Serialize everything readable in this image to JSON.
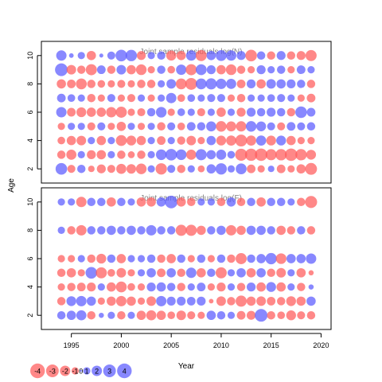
{
  "chart_data": [
    {
      "type": "scatter",
      "title": "Joint sample residuals log(N)",
      "xlabel": "Year",
      "ylabel": "Age",
      "xlim": [
        1992,
        2021
      ],
      "ylim": [
        1,
        11
      ],
      "yticks": [
        "2",
        "4",
        "6",
        "8",
        "10"
      ],
      "ages": [
        2,
        3,
        4,
        5,
        6,
        7,
        8,
        9,
        10
      ],
      "years": [
        1994,
        1995,
        1996,
        1997,
        1998,
        1999,
        2000,
        2001,
        2002,
        2003,
        2004,
        2005,
        2006,
        2007,
        2008,
        2009,
        2010,
        2011,
        2012,
        2013,
        2014,
        2015,
        2016,
        2017,
        2018,
        2019
      ],
      "residuals_by_age": {
        "2": [
          2.5,
          -1.2,
          1.3,
          -0.8,
          -1.5,
          -1.2,
          -1.9,
          -1.7,
          -2.1,
          1.0,
          -2.4,
          1.2,
          -1.3,
          1.0,
          -0.9,
          1.6,
          2.4,
          1.0,
          2.2,
          -1.4,
          -1.0,
          0.8,
          -1.4,
          -1.0,
          -1.6,
          -2.6
        ],
        "3": [
          -1.3,
          -1.9,
          1.0,
          -1.5,
          -1.6,
          1.0,
          -1.3,
          -0.9,
          -1.3,
          1.0,
          2.1,
          2.5,
          2.1,
          -1.9,
          2.3,
          1.6,
          1.9,
          1.1,
          -2.7,
          -2.8,
          -2.9,
          -2.3,
          -2.4,
          -2.9,
          -2.4,
          -1.8
        ],
        "4": [
          -1.1,
          -1.6,
          -1.7,
          1.0,
          -1.6,
          1.0,
          -2.2,
          -1.8,
          -1.6,
          1.0,
          -1.4,
          1.0,
          -1.3,
          -1.7,
          -1.0,
          1.6,
          -1.8,
          -1.9,
          -2.6,
          -1.9,
          1.9,
          -1.8,
          1.8,
          -1.6,
          -1.0,
          -1.0
        ],
        "5": [
          -1.0,
          1.0,
          1.0,
          -1.2,
          1.2,
          -1.0,
          -1.6,
          1.0,
          -1.0,
          1.0,
          -1.3,
          1.2,
          -1.1,
          1.4,
          1.3,
          1.9,
          -2.1,
          -1.9,
          -2.0,
          2.1,
          1.8,
          1.2,
          -1.2,
          1.4,
          1.2,
          1.3
        ],
        "6": [
          2.0,
          -1.4,
          -1.8,
          -1.6,
          -1.6,
          -2.0,
          -2.3,
          -1.0,
          -1.2,
          1.3,
          2.1,
          -1.0,
          1.1,
          1.0,
          -1.2,
          1.0,
          -1.6,
          1.0,
          -1.5,
          1.5,
          1.3,
          1.5,
          1.3,
          -1.3,
          2.5,
          1.4
        ],
        "7": [
          1.4,
          1.1,
          1.0,
          -1.3,
          -1.0,
          1.2,
          -1.0,
          -1.2,
          1.0,
          -1.0,
          1.0,
          2.0,
          -1.1,
          1.1,
          1.0,
          1.2,
          1.2,
          -1.0,
          -1.3,
          1.0,
          1.0,
          1.1,
          1.2,
          1.0,
          -1.0,
          -1.4
        ],
        "8": [
          -1.6,
          -1.4,
          -2.2,
          -1.3,
          -1.1,
          -1.0,
          -1.2,
          -1.0,
          -1.3,
          -1.3,
          1.0,
          1.7,
          -2.2,
          -2.6,
          2.2,
          2.3,
          2.0,
          1.9,
          -1.4,
          1.5,
          -1.6,
          1.7,
          1.6,
          1.5,
          1.3,
          -1.3
        ],
        "9": [
          3.0,
          -1.7,
          -1.3,
          -2.3,
          1.4,
          -1.3,
          1.7,
          -1.6,
          -2.1,
          -1.0,
          1.3,
          -1.1,
          2.0,
          -2.3,
          2.2,
          1.5,
          -1.6,
          -2.1,
          -1.3,
          -1.0,
          1.5,
          1.0,
          1.3,
          -1.0,
          1.4,
          1.0
        ],
        "10": [
          2.0,
          0.4,
          1.0,
          -1.6,
          0.3,
          1.2,
          2.5,
          2.4,
          -1.5,
          1.0,
          1.3,
          -1.9,
          -1.6,
          2.0,
          -2.3,
          1.6,
          2.2,
          2.0,
          1.5,
          -2.5,
          1.3,
          -1.3,
          1.5,
          -1.3,
          -1.5,
          -2.3
        ]
      }
    },
    {
      "type": "scatter",
      "title": "Joint sample residuals log(F)",
      "xlabel": "Year",
      "ylabel": "Age",
      "xlim": [
        1992,
        2021
      ],
      "ylim": [
        1,
        11
      ],
      "xticks": [
        "1995",
        "2000",
        "2005",
        "2010",
        "2015",
        "2020"
      ],
      "yticks": [
        "2",
        "4",
        "6",
        "8",
        "10"
      ],
      "ages": [
        2,
        3,
        4,
        5,
        6,
        8,
        10
      ],
      "years": [
        1994,
        1995,
        1996,
        1997,
        1998,
        1999,
        2000,
        2001,
        2002,
        2003,
        2004,
        2005,
        2006,
        2007,
        2008,
        2009,
        2010,
        2011,
        2012,
        2013,
        2014,
        2015,
        2016,
        2017,
        2018,
        2019
      ],
      "residuals_by_age": {
        "2": [
          1.3,
          1.6,
          1.9,
          -1.3,
          0.5,
          1.0,
          -1.3,
          1.0,
          -1.6,
          -1.9,
          -1.6,
          -1.1,
          -1.7,
          -1.2,
          -1.0,
          1.6,
          1.3,
          1.0,
          -1.4,
          -1.5,
          3.0,
          -1.3,
          -1.1,
          -1.8,
          -1.2,
          -1.3
        ],
        "3": [
          -1.3,
          1.8,
          2.0,
          1.6,
          -1.0,
          -1.6,
          -2.0,
          -1.6,
          -1.0,
          -1.7,
          2.0,
          1.5,
          1.5,
          1.4,
          1.5,
          -0.4,
          -1.7,
          -1.3,
          -2.3,
          -1.6,
          -1.7,
          -1.4,
          -1.3,
          -1.8,
          -1.6,
          1.6
        ],
        "4": [
          -1.0,
          -1.3,
          -1.4,
          -1.5,
          1.0,
          -1.6,
          -2.2,
          -1.1,
          -1.0,
          1.5,
          1.6,
          1.3,
          -1.3,
          1.0,
          1.4,
          -1.0,
          -1.5,
          1.0,
          -1.3,
          1.5,
          -1.6,
          1.8,
          -1.6,
          1.0,
          -1.3,
          0.5
        ],
        "5": [
          -1.3,
          -1.6,
          -1.0,
          2.5,
          -2.3,
          -1.1,
          -1.7,
          -1.0,
          1.0,
          1.6,
          -1.4,
          1.6,
          -1.3,
          2.0,
          -1.6,
          1.3,
          -2.3,
          1.0,
          1.6,
          -1.6,
          1.6,
          -1.3,
          -1.7,
          1.0,
          -1.6,
          -0.5
        ],
        "6": [
          -1.0,
          -1.0,
          1.0,
          -1.3,
          -1.8,
          1.3,
          -1.6,
          1.0,
          1.0,
          1.3,
          -1.3,
          -1.6,
          1.3,
          -1.0,
          1.3,
          -1.0,
          1.3,
          -1.3,
          -2.3,
          1.3,
          1.6,
          2.4,
          -2.1,
          1.6,
          1.6,
          2.0
        ],
        "8": [
          1.0,
          -1.3,
          -2.0,
          1.3,
          1.3,
          1.6,
          1.3,
          1.6,
          1.3,
          2.0,
          1.3,
          1.3,
          -2.3,
          -2.3,
          -1.6,
          1.3,
          1.6,
          -2.0,
          -1.6,
          1.6,
          1.6,
          1.3,
          -1.6,
          -1.3,
          1.3,
          -1.3
        ],
        "10": [
          1.0,
          1.0,
          -2.0,
          1.3,
          1.3,
          -1.6,
          1.3,
          1.0,
          -1.6,
          -1.6,
          1.6,
          3.0,
          -1.6,
          -1.3,
          1.0,
          1.0,
          -1.3,
          1.6,
          -1.3,
          1.3,
          -1.6,
          1.3,
          1.3,
          1.0,
          -1.3,
          -2.7
        ]
      }
    }
  ],
  "legend": {
    "items": [
      {
        "label": "-4",
        "value": -4
      },
      {
        "label": "-3",
        "value": -3
      },
      {
        "label": "-2",
        "value": -2
      },
      {
        "label": "-1",
        "value": -1
      },
      {
        "label": "0",
        "value": 0
      },
      {
        "label": "1",
        "value": 1
      },
      {
        "label": "2",
        "value": 2
      },
      {
        "label": "3",
        "value": 3
      },
      {
        "label": "4",
        "value": 4
      }
    ]
  },
  "colors": {
    "positive": "#5a5aff",
    "negative": "#ff5a5a",
    "axis": "#000000",
    "title": "#808080"
  }
}
